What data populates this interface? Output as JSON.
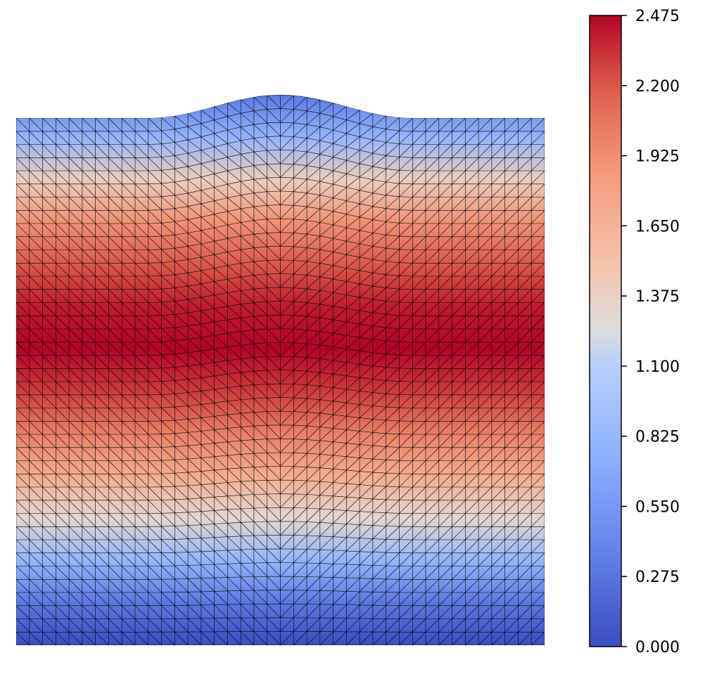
{
  "chart_data": {
    "type": "heatmap",
    "title": "",
    "xlabel": "",
    "ylabel": "",
    "colormap": "coolwarm",
    "colorbar": {
      "min": 0.0,
      "max": 2.475,
      "ticks": [
        "0.000",
        "0.275",
        "0.550",
        "0.825",
        "1.100",
        "1.375",
        "1.650",
        "1.925",
        "2.200",
        "2.475"
      ],
      "tick_values": [
        0.0,
        0.275,
        0.55,
        0.825,
        1.1,
        1.375,
        1.65,
        1.925,
        2.2,
        2.475
      ]
    },
    "field_profile": {
      "description_values_top_to_bottom": [
        0.3,
        0.8,
        1.4,
        1.9,
        2.2,
        2.4,
        2.475,
        2.3,
        2.0,
        1.7,
        1.3,
        0.8,
        0.3,
        0.0
      ],
      "domain_top_bump": true
    },
    "colors": {
      "low": "#3b4cc0",
      "mid": "#dddddd",
      "high": "#b40426",
      "mesh": "#000000"
    }
  }
}
